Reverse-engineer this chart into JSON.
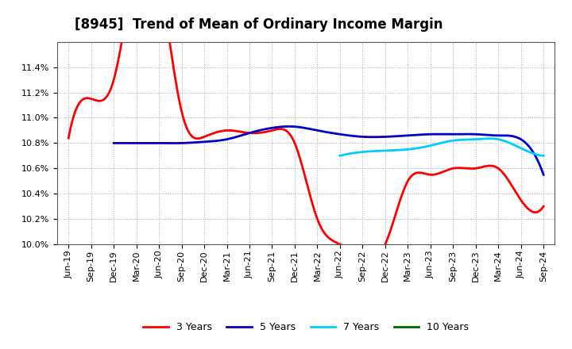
{
  "title": "[8945]  Trend of Mean of Ordinary Income Margin",
  "ylim": [
    0.1,
    0.116
  ],
  "yticks": [
    0.1,
    0.102,
    0.104,
    0.106,
    0.108,
    0.11,
    0.112,
    0.114
  ],
  "series": {
    "3 Years": {
      "color": "#ff0000",
      "x": [
        0,
        1,
        2,
        3,
        4,
        5,
        6,
        7,
        8,
        9,
        10,
        11,
        12,
        13,
        14,
        15,
        16,
        17,
        18,
        19,
        20,
        21
      ],
      "y": [
        0.1084,
        0.1115,
        0.113,
        0.122,
        0.121,
        0.1105,
        0.1085,
        0.109,
        0.1088,
        0.109,
        0.108,
        0.102,
        0.1,
        0.099,
        0.1,
        0.105,
        0.1055,
        0.106,
        0.106,
        0.106,
        0.1035,
        0.103
      ]
    },
    "5 Years": {
      "color": "#0000cc",
      "x": [
        2,
        3,
        4,
        5,
        6,
        7,
        8,
        9,
        10,
        11,
        12,
        13,
        14,
        15,
        16,
        17,
        18,
        19,
        20,
        21
      ],
      "y": [
        0.108,
        0.108,
        0.108,
        0.108,
        0.1081,
        0.1083,
        0.1088,
        0.1092,
        0.1093,
        0.109,
        0.1087,
        0.1085,
        0.1085,
        0.1086,
        0.1087,
        0.1087,
        0.1087,
        0.1086,
        0.1083,
        0.1055
      ]
    },
    "7 Years": {
      "color": "#00ccff",
      "x": [
        12,
        13,
        14,
        15,
        16,
        17,
        18,
        19,
        20,
        21
      ],
      "y": [
        0.107,
        0.1073,
        0.1074,
        0.1075,
        0.1078,
        0.1082,
        0.1083,
        0.1083,
        0.1076,
        0.107
      ]
    },
    "10 Years": {
      "color": "#006600",
      "x": [],
      "y": []
    }
  },
  "xtick_labels": [
    "Jun-19",
    "Sep-19",
    "Dec-19",
    "Mar-20",
    "Jun-20",
    "Sep-20",
    "Dec-20",
    "Mar-21",
    "Jun-21",
    "Sep-21",
    "Dec-21",
    "Mar-22",
    "Jun-22",
    "Sep-22",
    "Dec-22",
    "Mar-23",
    "Jun-23",
    "Sep-23",
    "Dec-23",
    "Mar-24",
    "Jun-24",
    "Sep-24"
  ],
  "background_color": "#ffffff",
  "grid_color": "#aaaaaa",
  "title_fontsize": 12,
  "legend_fontsize": 9,
  "tick_fontsize": 8
}
